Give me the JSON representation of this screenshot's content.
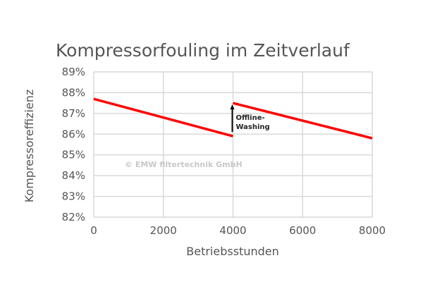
{
  "chart_data": {
    "type": "line",
    "title": "Kompressorfouling im Zeitverlauf",
    "xlabel": "Betriebsstunden",
    "ylabel": "Kompressoreffizienz",
    "xlim": [
      0,
      8000
    ],
    "ylim": [
      82,
      89
    ],
    "x_ticks": [
      0,
      2000,
      4000,
      6000,
      8000
    ],
    "x_tick_labels": [
      "0",
      "2000",
      "4000",
      "6000",
      "8000"
    ],
    "y_ticks": [
      82,
      83,
      84,
      85,
      86,
      87,
      88,
      89
    ],
    "y_tick_labels": [
      "82%",
      "83%",
      "84%",
      "85%",
      "86%",
      "87%",
      "88%",
      "89%"
    ],
    "grid": true,
    "series": [
      {
        "color": "#ff0000",
        "segments": [
          {
            "x": [
              0,
              4000
            ],
            "y": [
              87.7,
              85.9
            ]
          },
          {
            "x": [
              4000,
              8000
            ],
            "y": [
              87.5,
              85.8
            ]
          }
        ]
      }
    ],
    "annotations": [
      {
        "text_lines": [
          "Offline-",
          "Washing"
        ],
        "arrow": {
          "x": 4000,
          "from": 86.1,
          "to": 87.5
        }
      }
    ],
    "watermark": "© EMW filtertechnik GmbH"
  }
}
